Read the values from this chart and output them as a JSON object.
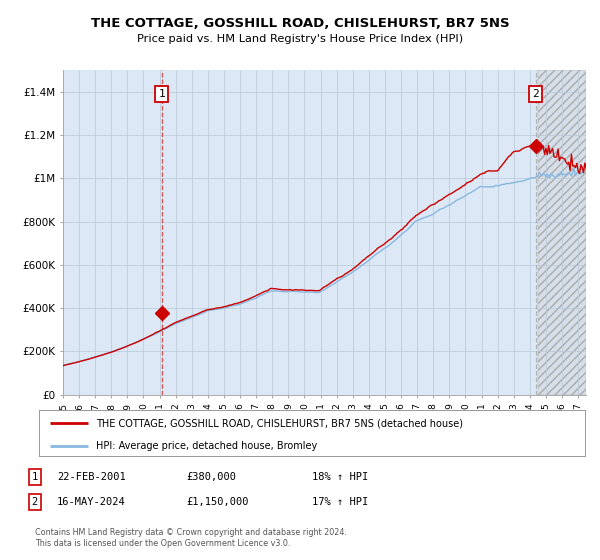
{
  "title": "THE COTTAGE, GOSSHILL ROAD, CHISLEHURST, BR7 5NS",
  "subtitle": "Price paid vs. HM Land Registry's House Price Index (HPI)",
  "ylim": [
    0,
    1500000
  ],
  "xlim_start": 1995.0,
  "xlim_end": 2027.5,
  "background_color": "#dce8f5",
  "hatch_start": 2024.5,
  "point1_x": 2001.13,
  "point1_y": 380000,
  "point2_x": 2024.38,
  "point2_y": 1150000,
  "legend_label_red": "THE COTTAGE, GOSSHILL ROAD, CHISLEHURST, BR7 5NS (detached house)",
  "legend_label_blue": "HPI: Average price, detached house, Bromley",
  "footer": "Contains HM Land Registry data © Crown copyright and database right 2024.\nThis data is licensed under the Open Government Licence v3.0.",
  "red_color": "#cc0000",
  "blue_color": "#88b8e0",
  "ytick_labels": [
    "£0",
    "£200K",
    "£400K",
    "£600K",
    "£800K",
    "£1M",
    "£1.2M",
    "£1.4M"
  ],
  "ytick_values": [
    0,
    200000,
    400000,
    600000,
    800000,
    1000000,
    1200000,
    1400000
  ],
  "ann1_num": "1",
  "ann1_date": "22-FEB-2001",
  "ann1_price": "£380,000",
  "ann1_pct": "18% ↑ HPI",
  "ann2_num": "2",
  "ann2_date": "16-MAY-2024",
  "ann2_price": "£1,150,000",
  "ann2_pct": "17% ↑ HPI"
}
